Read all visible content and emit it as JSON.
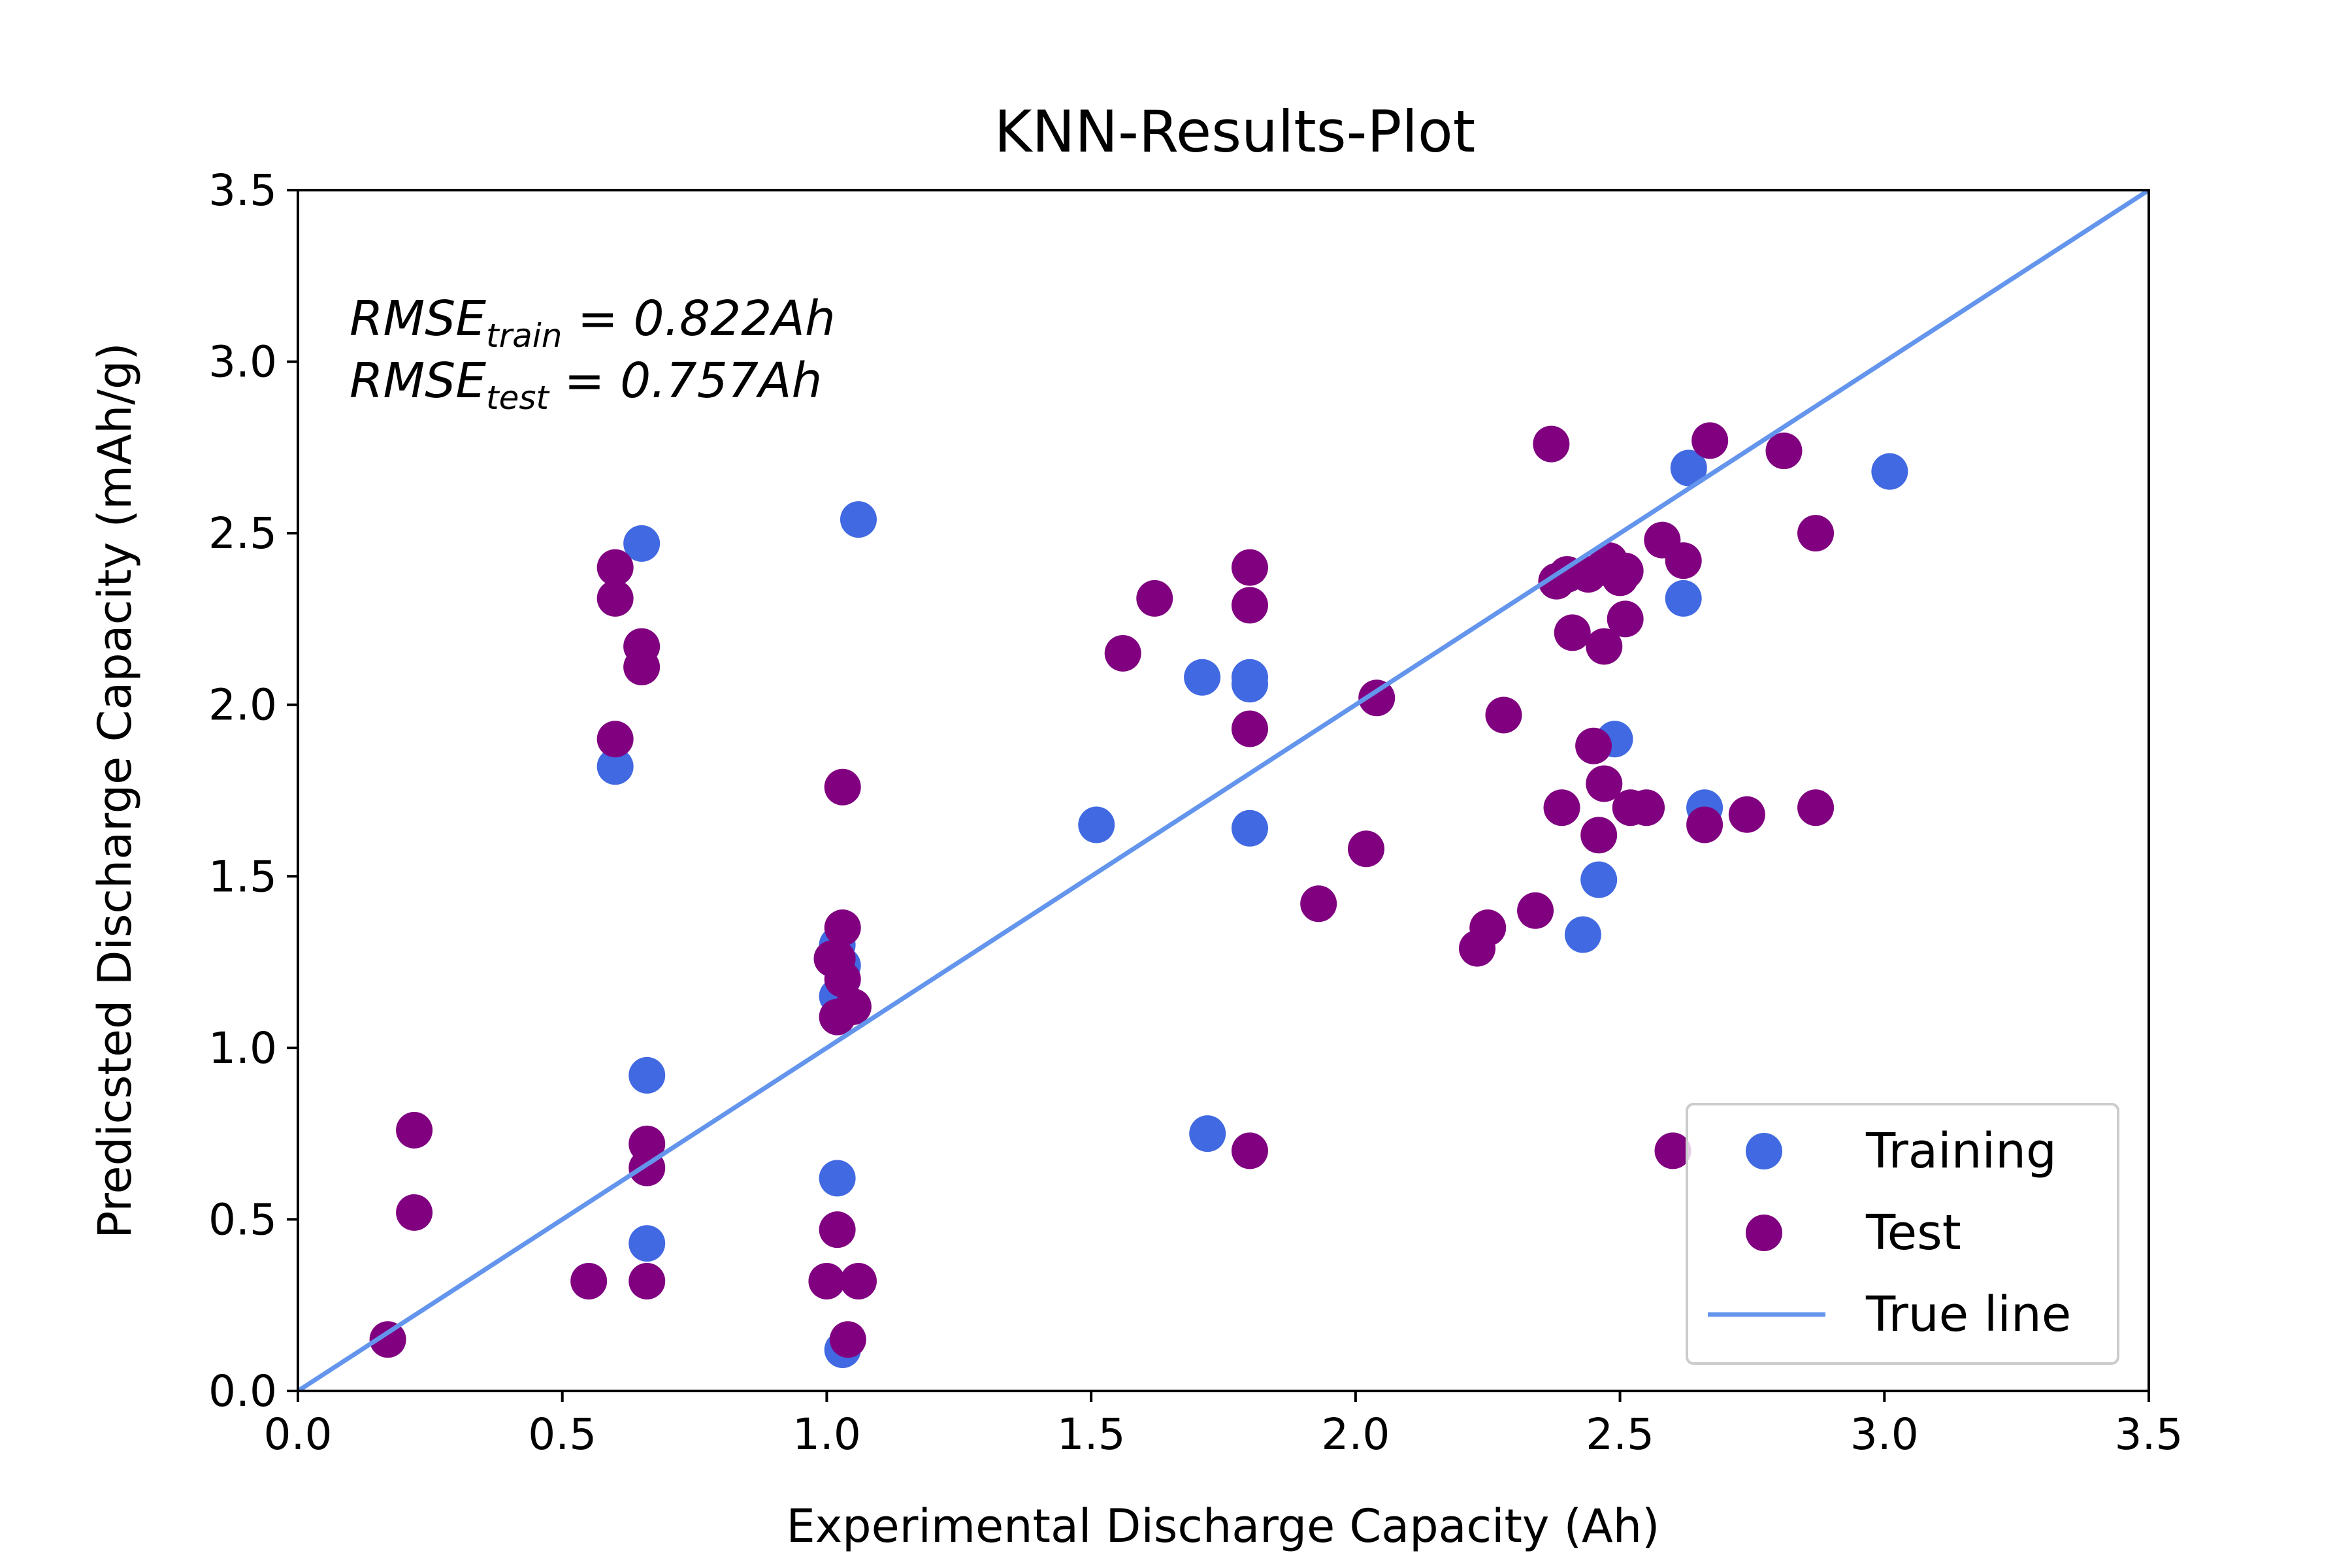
{
  "chart_data": {
    "type": "scatter",
    "title": "KNN-Results-Plot",
    "xlabel": "Experimental Discharge Capacity (Ah)",
    "ylabel": "Predicsted Discharge Capacity (mAh/g)",
    "xlim": [
      0.0,
      3.5
    ],
    "ylim": [
      0.0,
      3.5
    ],
    "xticks": [
      "0.0",
      "0.5",
      "1.0",
      "1.5",
      "2.0",
      "2.5",
      "3.0",
      "3.5"
    ],
    "yticks": [
      "0.0",
      "0.5",
      "1.0",
      "1.5",
      "2.0",
      "2.5",
      "3.0",
      "3.5"
    ],
    "grid": false,
    "legend_position": "lower-right",
    "annotations": {
      "train": {
        "base": "RMSE",
        "sub": "train",
        "rest": " = 0.822Ah"
      },
      "test": {
        "base": "RMSE",
        "sub": "test",
        "rest": " = 0.757Ah"
      }
    },
    "series": [
      {
        "name": "Training",
        "kind": "scatter",
        "color": "#4169E1",
        "points": [
          [
            0.65,
            2.47
          ],
          [
            0.6,
            1.82
          ],
          [
            1.06,
            2.54
          ],
          [
            0.66,
            0.92
          ],
          [
            0.66,
            0.43
          ],
          [
            1.03,
            0.12
          ],
          [
            1.02,
            0.62
          ],
          [
            1.02,
            1.3
          ],
          [
            1.02,
            1.15
          ],
          [
            1.03,
            1.24
          ],
          [
            1.51,
            1.65
          ],
          [
            1.71,
            2.08
          ],
          [
            1.8,
            2.08
          ],
          [
            1.8,
            2.06
          ],
          [
            1.8,
            1.64
          ],
          [
            1.72,
            0.75
          ],
          [
            2.43,
            1.33
          ],
          [
            2.46,
            1.49
          ],
          [
            2.49,
            1.9
          ],
          [
            2.63,
            2.69
          ],
          [
            2.62,
            2.31
          ],
          [
            2.66,
            1.7
          ],
          [
            3.01,
            2.68
          ]
        ]
      },
      {
        "name": "Test",
        "kind": "scatter",
        "color": "#800080",
        "points": [
          [
            0.17,
            0.15
          ],
          [
            0.22,
            0.76
          ],
          [
            0.22,
            0.52
          ],
          [
            0.55,
            0.32
          ],
          [
            0.66,
            0.32
          ],
          [
            0.66,
            0.72
          ],
          [
            0.66,
            0.65
          ],
          [
            0.6,
            2.4
          ],
          [
            0.6,
            2.31
          ],
          [
            0.65,
            2.17
          ],
          [
            0.65,
            2.11
          ],
          [
            0.6,
            1.9
          ],
          [
            1.0,
            0.32
          ],
          [
            1.06,
            0.32
          ],
          [
            1.04,
            0.15
          ],
          [
            1.02,
            0.47
          ],
          [
            1.03,
            1.76
          ],
          [
            1.03,
            1.35
          ],
          [
            1.01,
            1.26
          ],
          [
            1.02,
            1.26
          ],
          [
            1.03,
            1.2
          ],
          [
            1.05,
            1.12
          ],
          [
            1.02,
            1.09
          ],
          [
            1.56,
            2.15
          ],
          [
            1.62,
            2.31
          ],
          [
            1.8,
            2.4
          ],
          [
            1.8,
            2.29
          ],
          [
            1.8,
            1.93
          ],
          [
            1.8,
            0.7
          ],
          [
            1.93,
            1.42
          ],
          [
            2.02,
            1.58
          ],
          [
            2.04,
            2.02
          ],
          [
            2.23,
            1.29
          ],
          [
            2.25,
            1.35
          ],
          [
            2.28,
            1.97
          ],
          [
            2.34,
            1.4
          ],
          [
            2.37,
            2.76
          ],
          [
            2.38,
            2.36
          ],
          [
            2.4,
            2.38
          ],
          [
            2.41,
            2.21
          ],
          [
            2.44,
            2.38
          ],
          [
            2.47,
            2.4
          ],
          [
            2.48,
            2.42
          ],
          [
            2.5,
            2.37
          ],
          [
            2.51,
            2.39
          ],
          [
            2.51,
            2.25
          ],
          [
            2.47,
            2.17
          ],
          [
            2.45,
            1.88
          ],
          [
            2.47,
            1.77
          ],
          [
            2.46,
            1.62
          ],
          [
            2.39,
            1.7
          ],
          [
            2.52,
            1.7
          ],
          [
            2.55,
            1.7
          ],
          [
            2.58,
            2.48
          ],
          [
            2.62,
            2.42
          ],
          [
            2.66,
            1.65
          ],
          [
            2.67,
            2.77
          ],
          [
            2.74,
            1.68
          ],
          [
            2.81,
            2.74
          ],
          [
            2.87,
            2.5
          ],
          [
            2.87,
            1.7
          ],
          [
            2.6,
            0.7
          ]
        ]
      },
      {
        "name": "True line",
        "kind": "line",
        "color": "#6495ED",
        "points": [
          [
            0.0,
            0.0
          ],
          [
            3.5,
            3.5
          ]
        ]
      }
    ]
  }
}
